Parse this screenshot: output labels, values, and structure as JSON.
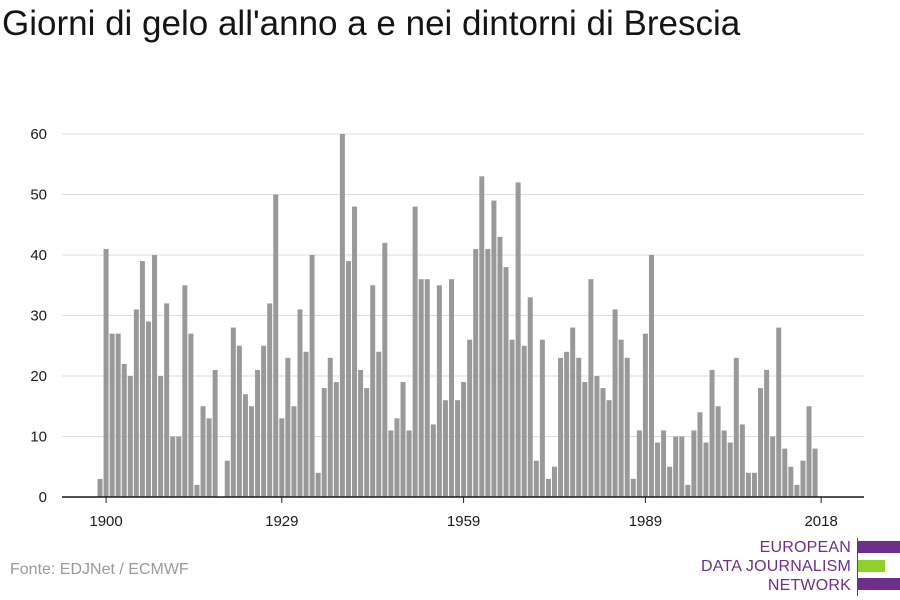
{
  "title": "Giorni di gelo all'anno a e nei dintorni di Brescia",
  "source": "Fonte: EDJNet / ECMWF",
  "logo": {
    "lines": [
      "EUROPEAN",
      "DATA JOURNALISM",
      "NETWORK"
    ],
    "purple": "#6e2e8c",
    "green": "#8fd12c"
  },
  "colors": {
    "bar": "#999999",
    "grid": "#dddddd",
    "axis": "#1a1a1a"
  },
  "chart_data": {
    "type": "bar",
    "title": "Giorni di gelo all'anno a e nei dintorni di Brescia",
    "xlabel": "",
    "ylabel": "",
    "ylim": [
      0,
      60
    ],
    "xlim": [
      1899,
      2019
    ],
    "grid": true,
    "legend": "none",
    "yticks": [
      0,
      10,
      20,
      30,
      40,
      50,
      60
    ],
    "xticks": [
      1900,
      1929,
      1959,
      1989,
      2018
    ],
    "years": [
      1899,
      1900,
      1901,
      1902,
      1903,
      1904,
      1905,
      1906,
      1907,
      1908,
      1909,
      1910,
      1911,
      1912,
      1913,
      1914,
      1915,
      1916,
      1917,
      1918,
      1919,
      1920,
      1921,
      1922,
      1923,
      1924,
      1925,
      1926,
      1927,
      1928,
      1929,
      1930,
      1931,
      1932,
      1933,
      1934,
      1935,
      1936,
      1937,
      1938,
      1939,
      1940,
      1941,
      1942,
      1943,
      1944,
      1945,
      1946,
      1947,
      1948,
      1949,
      1950,
      1951,
      1952,
      1953,
      1954,
      1955,
      1956,
      1957,
      1958,
      1959,
      1960,
      1961,
      1962,
      1963,
      1964,
      1965,
      1966,
      1967,
      1968,
      1969,
      1970,
      1971,
      1972,
      1973,
      1974,
      1975,
      1976,
      1977,
      1978,
      1979,
      1980,
      1981,
      1982,
      1983,
      1984,
      1985,
      1986,
      1987,
      1988,
      1989,
      1990,
      1991,
      1992,
      1993,
      1994,
      1995,
      1996,
      1997,
      1998,
      1999,
      2000,
      2001,
      2002,
      2003,
      2004,
      2005,
      2006,
      2007,
      2008,
      2009,
      2010,
      2011,
      2012,
      2013,
      2014,
      2015,
      2016,
      2017,
      2018
    ],
    "values": [
      3,
      41,
      27,
      27,
      22,
      20,
      31,
      39,
      29,
      40,
      20,
      32,
      10,
      10,
      35,
      27,
      2,
      15,
      13,
      21,
      0,
      6,
      28,
      25,
      17,
      15,
      21,
      25,
      32,
      50,
      13,
      23,
      15,
      31,
      24,
      40,
      4,
      18,
      23,
      19,
      60,
      39,
      48,
      21,
      18,
      35,
      24,
      42,
      11,
      13,
      19,
      11,
      48,
      36,
      36,
      12,
      35,
      16,
      36,
      16,
      19,
      26,
      41,
      53,
      41,
      49,
      43,
      38,
      26,
      52,
      25,
      33,
      6,
      26,
      3,
      5,
      23,
      24,
      28,
      23,
      19,
      36,
      20,
      18,
      16,
      31,
      26,
      23,
      3,
      11,
      27,
      40,
      9,
      11,
      5,
      10,
      10,
      2,
      11,
      14,
      9,
      21,
      15,
      11,
      9,
      23,
      12,
      4,
      4,
      18,
      21,
      10,
      28,
      8,
      5,
      2,
      6,
      15,
      8,
      0
    ]
  }
}
